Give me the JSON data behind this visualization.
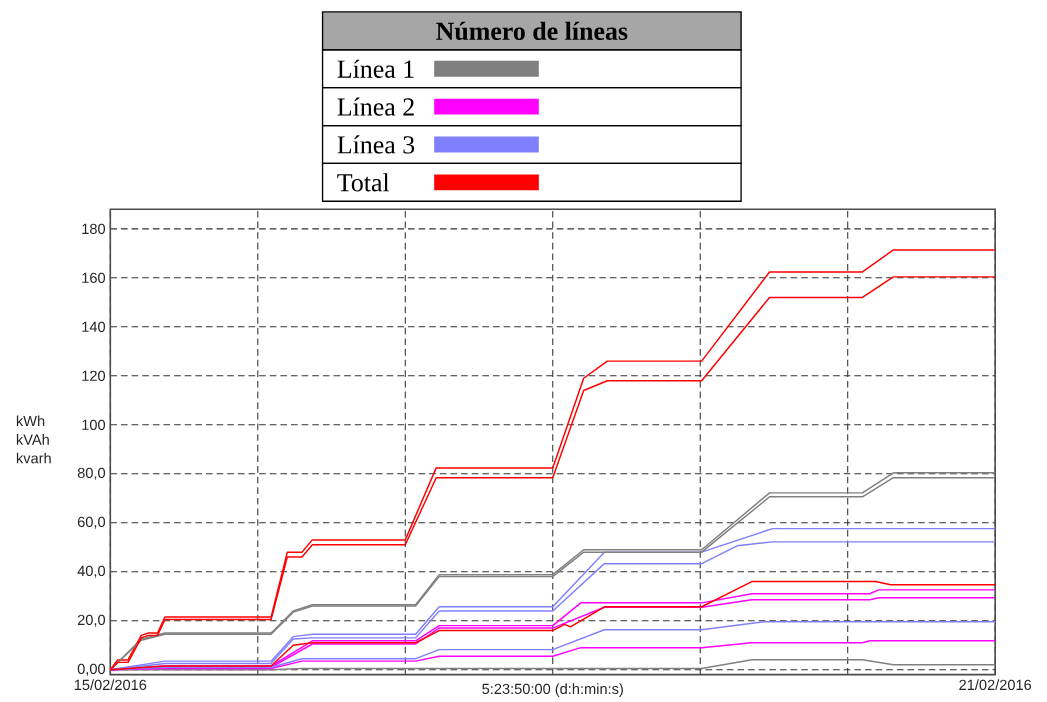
{
  "chart_data": {
    "type": "line",
    "xlabel": "5:23:50:00 (d:h:min:s)",
    "ylabel": "kWh kVAh kvarh",
    "legend_title": "Número de líneas",
    "legend": "top",
    "grid": true,
    "xlim": [
      "2016-02-15",
      "2016-02-21"
    ],
    "ylim": [
      -2,
      188
    ],
    "xticks": [
      {
        "value": "2016-02-15",
        "label": "15/02/2016"
      },
      {
        "value": "2016-02-16",
        "label": null
      },
      {
        "value": "2016-02-17",
        "label": null
      },
      {
        "value": "2016-02-18",
        "label": null
      },
      {
        "value": "2016-02-19",
        "label": null
      },
      {
        "value": "2016-02-20",
        "label": null
      },
      {
        "value": "2016-02-21",
        "label": "21/02/2016"
      }
    ],
    "yticks": [
      {
        "value": 0,
        "label": "0,00"
      },
      {
        "value": 20,
        "label": "20,0"
      },
      {
        "value": 40,
        "label": "40,0"
      },
      {
        "value": 60,
        "label": "60,0"
      },
      {
        "value": 80,
        "label": "80,0"
      },
      100,
      120,
      140,
      160,
      180
    ],
    "series": [
      {
        "name": "Línea 1",
        "color": "#808080",
        "x": [
          "2016-02-15T00:00",
          "2016-02-15T05:02",
          "2016-02-15T08:53",
          "2016-02-16T02:10",
          "2016-02-16T05:46",
          "2016-02-16T08:53",
          "2016-02-17T01:41",
          "2016-02-17T05:31",
          "2016-02-18T00:00",
          "2016-02-18T05:02",
          "2016-02-19T00:14",
          "2016-02-19T11:17",
          "2016-02-20T02:24",
          "2016-02-20T07:26",
          "2016-02-21T00:00"
        ],
        "values": [
          0,
          12.5,
          15,
          15,
          24,
          26.5,
          26.5,
          38.8,
          38.8,
          49,
          49,
          72.2,
          72.2,
          80.4,
          80.4
        ]
      },
      {
        "name": "Línea 2",
        "color": "#ff00ff",
        "x": [
          "2016-02-15T00:00",
          "2016-02-15T08:53",
          "2016-02-16T02:10",
          "2016-02-16T08:53",
          "2016-02-17T01:41",
          "2016-02-17T05:31",
          "2016-02-18T00:00",
          "2016-02-18T04:34",
          "2016-02-19T00:14",
          "2016-02-19T08:24",
          "2016-02-20T03:36",
          "2016-02-20T05:02",
          "2016-02-21T00:00"
        ],
        "values": [
          0,
          1.5,
          1.5,
          11.8,
          11.8,
          18,
          18,
          27.3,
          27.3,
          31,
          31,
          32.6,
          32.6
        ]
      },
      {
        "name": "Línea 3",
        "color": "#8080ff",
        "x": [
          "2016-02-15T00:00",
          "2016-02-15T08:53",
          "2016-02-16T02:10",
          "2016-02-16T05:46",
          "2016-02-16T08:53",
          "2016-02-17T01:41",
          "2016-02-17T05:31",
          "2016-02-18T00:00",
          "2016-02-18T08:24",
          "2016-02-19T00:14",
          "2016-02-19T11:46",
          "2016-02-21T00:00"
        ],
        "values": [
          0,
          3.5,
          3.5,
          13.5,
          14.5,
          14.5,
          25.7,
          25.7,
          48,
          48,
          57.6,
          57.6
        ]
      },
      {
        "name": "Total",
        "color": "#ff0000",
        "x": [
          "2016-02-15T00:00",
          "2016-02-15T01:12",
          "2016-02-15T02:53",
          "2016-02-15T05:02",
          "2016-02-15T06:14",
          "2016-02-15T07:41",
          "2016-02-15T08:53",
          "2016-02-16T02:10",
          "2016-02-16T04:48",
          "2016-02-16T07:12",
          "2016-02-16T08:53",
          "2016-02-17T00:00",
          "2016-02-17T05:02",
          "2016-02-18T00:00",
          "2016-02-18T05:02",
          "2016-02-18T08:53",
          "2016-02-19T00:14",
          "2016-02-19T11:17",
          "2016-02-20T02:24",
          "2016-02-20T07:26",
          "2016-02-21T00:00"
        ],
        "values": [
          0,
          4,
          4,
          14,
          15,
          15,
          21.5,
          21.5,
          48,
          48,
          53,
          53,
          82.4,
          82.4,
          119,
          126,
          126,
          162.4,
          162.4,
          171.4,
          171.4
        ]
      },
      {
        "color": "#808080",
        "x": [
          "2016-02-15T00:00",
          "2016-02-15T05:02",
          "2016-02-15T08:53",
          "2016-02-16T02:10",
          "2016-02-16T05:46",
          "2016-02-16T08:53",
          "2016-02-17T01:41",
          "2016-02-17T05:31",
          "2016-02-18T00:00",
          "2016-02-18T05:02",
          "2016-02-19T00:14",
          "2016-02-19T11:17",
          "2016-02-20T02:24",
          "2016-02-20T07:26",
          "2016-02-21T00:00"
        ],
        "values": [
          0,
          12,
          14.5,
          14.5,
          23.5,
          26,
          26,
          38,
          38,
          48,
          48,
          70.6,
          70.6,
          78.4,
          78.4
        ]
      },
      {
        "color": "#808080",
        "x": [
          "2016-02-15T00:00",
          "2016-02-16T02:10",
          "2016-02-16T07:12",
          "2016-02-18T00:00",
          "2016-02-19T00:14",
          "2016-02-19T08:24",
          "2016-02-20T02:24",
          "2016-02-20T07:26",
          "2016-02-21T00:00"
        ],
        "values": [
          0,
          0,
          0.5,
          0.5,
          0.5,
          4.1,
          4.1,
          2.0,
          2.0
        ]
      },
      {
        "color": "#ff00ff",
        "x": [
          "2016-02-15T00:00",
          "2016-02-15T08:53",
          "2016-02-16T02:10",
          "2016-02-16T08:53",
          "2016-02-17T01:41",
          "2016-02-17T05:31",
          "2016-02-18T00:00",
          "2016-02-18T08:24",
          "2016-02-19T00:14",
          "2016-02-19T08:24",
          "2016-02-20T03:36",
          "2016-02-20T05:02",
          "2016-02-21T00:00"
        ],
        "values": [
          0,
          1,
          1,
          10.5,
          10.5,
          17,
          17,
          25.5,
          25.5,
          28.6,
          28.6,
          29.4,
          29.4
        ]
      },
      {
        "color": "#ff00ff",
        "x": [
          "2016-02-15T00:00",
          "2016-02-15T08:53",
          "2016-02-16T02:10",
          "2016-02-16T07:12",
          "2016-02-17T01:41",
          "2016-02-17T05:31",
          "2016-02-18T00:00",
          "2016-02-18T04:34",
          "2016-02-19T00:14",
          "2016-02-19T08:24",
          "2016-02-20T02:24",
          "2016-02-20T03:36",
          "2016-02-21T00:00"
        ],
        "values": [
          0,
          0.5,
          0.5,
          3.5,
          3.5,
          5.5,
          5.5,
          9,
          9,
          11,
          11,
          11.8,
          11.8
        ]
      },
      {
        "color": "#8080ff",
        "x": [
          "2016-02-15T00:00",
          "2016-02-15T08:53",
          "2016-02-16T02:10",
          "2016-02-16T05:46",
          "2016-02-16T08:53",
          "2016-02-17T01:41",
          "2016-02-17T05:31",
          "2016-02-18T00:00",
          "2016-02-18T08:24",
          "2016-02-19T00:14",
          "2016-02-19T06:00",
          "2016-02-19T11:46",
          "2016-02-21T00:00"
        ],
        "values": [
          0,
          2.5,
          2.5,
          12.5,
          13,
          13,
          24,
          24,
          43.3,
          43.3,
          50.6,
          52.2,
          52.2
        ]
      },
      {
        "color": "#8080ff",
        "x": [
          "2016-02-15T00:00",
          "2016-02-15T08:53",
          "2016-02-16T02:10",
          "2016-02-16T07:12",
          "2016-02-17T01:41",
          "2016-02-17T05:31",
          "2016-02-18T00:00",
          "2016-02-18T08:24",
          "2016-02-19T00:14",
          "2016-02-19T10:34",
          "2016-02-21T00:00"
        ],
        "values": [
          0,
          1,
          1,
          4.5,
          4.5,
          8.2,
          8.2,
          16.3,
          16.3,
          19.6,
          19.6
        ]
      },
      {
        "color": "#ff0000",
        "x": [
          "2016-02-15T00:00",
          "2016-02-15T08:53",
          "2016-02-16T02:10",
          "2016-02-16T05:46",
          "2016-02-16T08:53",
          "2016-02-17T01:41",
          "2016-02-17T05:31",
          "2016-02-18T00:00",
          "2016-02-18T01:55",
          "2016-02-18T02:53",
          "2016-02-18T08:24",
          "2016-02-19T00:14",
          "2016-02-19T08:24",
          "2016-02-20T04:34",
          "2016-02-20T06:58",
          "2016-02-21T00:00"
        ],
        "values": [
          0,
          1.5,
          1.5,
          10,
          11,
          11,
          16,
          16,
          18.5,
          17.5,
          25.7,
          25.7,
          36,
          36,
          34.7,
          34.7
        ]
      },
      {
        "color": "#ff0000",
        "x": [
          "2016-02-15T00:00",
          "2016-02-15T01:12",
          "2016-02-15T02:53",
          "2016-02-15T05:02",
          "2016-02-15T06:14",
          "2016-02-15T07:41",
          "2016-02-15T08:53",
          "2016-02-16T02:10",
          "2016-02-16T04:48",
          "2016-02-16T07:12",
          "2016-02-16T08:53",
          "2016-02-17T00:00",
          "2016-02-17T05:02",
          "2016-02-18T00:00",
          "2016-02-18T05:02",
          "2016-02-18T08:53",
          "2016-02-19T00:14",
          "2016-02-19T11:17",
          "2016-02-20T02:24",
          "2016-02-20T07:26",
          "2016-02-21T00:00"
        ],
        "values": [
          0,
          3,
          3,
          13,
          14,
          14,
          20.5,
          20.5,
          46,
          46,
          51,
          51,
          78.4,
          78.4,
          114,
          118,
          118,
          152,
          152,
          160.4,
          160.4
        ]
      }
    ]
  }
}
